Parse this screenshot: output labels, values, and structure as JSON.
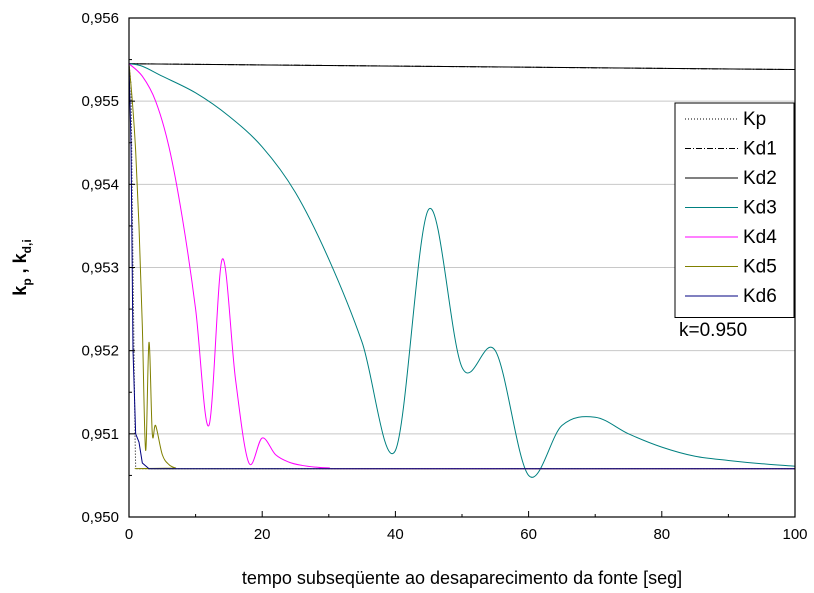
{
  "chart_data": {
    "type": "line",
    "title": "",
    "xlabel": "tempo subseqüente ao desaparecimento da fonte [seg]",
    "ylabel_main": "k",
    "ylabel_sub1": "p",
    "ylabel_sep": " , k",
    "ylabel_sub2": "d,i",
    "xlim": [
      0,
      100
    ],
    "ylim": [
      0.95,
      0.956
    ],
    "x_ticks": [
      0,
      20,
      40,
      60,
      80,
      100
    ],
    "x_tick_labels": [
      "0",
      "20",
      "40",
      "60",
      "80",
      "100"
    ],
    "y_ticks": [
      0.95,
      0.951,
      0.952,
      0.953,
      0.954,
      0.955,
      0.956
    ],
    "y_tick_labels": [
      "0,950",
      "0,951",
      "0,952",
      "0,953",
      "0,954",
      "0,955",
      "0,956"
    ],
    "grid": "horizontal",
    "legend_position": "top-right",
    "annotation": "k=0.950",
    "series": [
      {
        "name": "Kp",
        "color": "#000000",
        "dash": "1,2",
        "x": [
          0,
          0.3,
          0.6,
          0.9,
          1.0,
          1.2,
          100
        ],
        "y": [
          0.95545,
          0.9552,
          0.953,
          0.951,
          0.9506,
          0.95058,
          0.95058
        ]
      },
      {
        "name": "Kd1",
        "color": "#000000",
        "dash": "6,2,1,2",
        "x": [
          0,
          100
        ],
        "y": [
          0.95545,
          0.95538
        ]
      },
      {
        "name": "Kd2",
        "color": "#000000",
        "dash": "",
        "x": [
          0,
          100
        ],
        "y": [
          0.95545,
          0.95538
        ]
      },
      {
        "name": "Kd3",
        "color": "#008080",
        "dash": "",
        "x": [
          0,
          2,
          5,
          10,
          15,
          20,
          25,
          30,
          35,
          40,
          45,
          50,
          55,
          60,
          65,
          70,
          75,
          80,
          85,
          90,
          95,
          100
        ],
        "y": [
          0.95545,
          0.95542,
          0.9553,
          0.9551,
          0.95482,
          0.95445,
          0.9539,
          0.9531,
          0.9521,
          0.9508,
          0.9537,
          0.9518,
          0.952,
          0.9505,
          0.9511,
          0.9512,
          0.951,
          0.95084,
          0.95073,
          0.95068,
          0.95064,
          0.95061
        ]
      },
      {
        "name": "Kd4",
        "color": "#ff00ff",
        "dash": "",
        "x": [
          0,
          2,
          4,
          6,
          8,
          10,
          12,
          14,
          16,
          18,
          20,
          22,
          24,
          26,
          28,
          30,
          35,
          100
        ],
        "y": [
          0.95545,
          0.9553,
          0.955,
          0.95445,
          0.9536,
          0.9525,
          0.9511,
          0.9531,
          0.95165,
          0.95065,
          0.95095,
          0.95075,
          0.95066,
          0.95062,
          0.9506,
          0.95059,
          0.95058,
          0.95058
        ]
      },
      {
        "name": "Kd5",
        "color": "#808000",
        "dash": "",
        "x": [
          0,
          0.5,
          1,
          1.5,
          2,
          2.5,
          3,
          3.5,
          4,
          5,
          6,
          7,
          8,
          100
        ],
        "y": [
          0.95545,
          0.955,
          0.9544,
          0.9535,
          0.9523,
          0.9508,
          0.9521,
          0.951,
          0.9511,
          0.95075,
          0.95063,
          0.95059,
          0.95058,
          0.95058
        ]
      },
      {
        "name": "Kd6",
        "color": "#000080",
        "dash": "",
        "x": [
          0,
          0.3,
          0.6,
          1,
          1.5,
          2,
          3,
          100
        ],
        "y": [
          0.95545,
          0.9545,
          0.952,
          0.951,
          0.9509,
          0.95065,
          0.95058,
          0.95058
        ]
      }
    ]
  }
}
